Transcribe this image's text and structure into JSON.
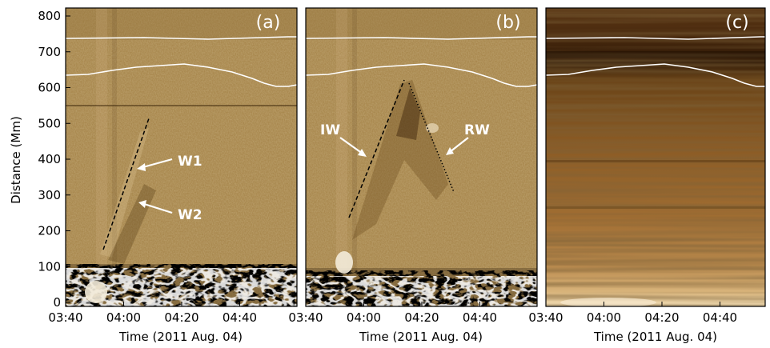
{
  "figure": {
    "y_axis_label": "Distance (Mm)",
    "y_ticks": [
      "0",
      "100",
      "200",
      "300",
      "400",
      "500",
      "600",
      "700",
      "800"
    ],
    "panels": [
      {
        "id": "a",
        "panel_label": "(a)",
        "x_ticks": [
          "03:40",
          "04:00",
          "04:20",
          "04:40"
        ],
        "x_axis_label": "Time (2011 Aug. 04)",
        "annotations": [
          "W1",
          "W2"
        ],
        "style": "base-difference"
      },
      {
        "id": "b",
        "panel_label": "(b)",
        "x_ticks": [
          "03:40",
          "04:00",
          "04:20",
          "04:40"
        ],
        "x_axis_label": "Time (2011 Aug. 04)",
        "annotations": [
          "IW",
          "RW"
        ],
        "style": "base-difference"
      },
      {
        "id": "c",
        "panel_label": "(c)",
        "x_ticks": [
          "03:40",
          "04:00",
          "04:20",
          "04:40"
        ],
        "x_axis_label": "Time (2011 Aug. 04)",
        "annotations": [],
        "style": "intensity"
      }
    ],
    "colors": {
      "background_mid": "#a8874d",
      "background_dark": "#6e4a1c",
      "overlay_line": "#ffffff",
      "axis": "#000000"
    }
  },
  "chart_data": {
    "type": "heatmap",
    "x_range": [
      "03:40",
      "05:00"
    ],
    "y_range": [
      0,
      820
    ],
    "ylabel": "Distance (Mm)",
    "xlabel": "Time (2011 Aug. 04)",
    "fits": [
      {
        "panel": "a",
        "style": "dashed",
        "start": [
          "03:54",
          170
        ],
        "end": [
          "04:06",
          520
        ]
      },
      {
        "panel": "b",
        "style": "dashed",
        "start": [
          "03:53",
          240
        ],
        "end": [
          "04:11",
          610
        ]
      },
      {
        "panel": "b",
        "style": "dotted",
        "start": [
          "04:15",
          600
        ],
        "end": [
          "04:30",
          310
        ]
      }
    ],
    "contour_lines": "upper and lower white boundary traces near 620-740 Mm in all panels"
  }
}
